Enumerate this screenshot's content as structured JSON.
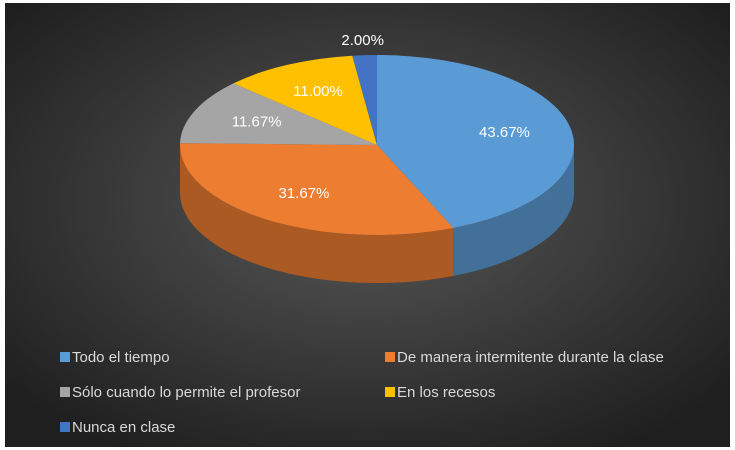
{
  "chart_data": {
    "type": "pie",
    "categories": [
      "Todo el tiempo",
      "De manera intermitente durante la clase",
      "Sólo cuando lo permite el profesor",
      "En los recesos",
      "Nunca en clase"
    ],
    "values": [
      43.67,
      31.67,
      11.67,
      11.0,
      2.0
    ],
    "value_labels": [
      "43.67%",
      "31.67%",
      "11.67%",
      "11.00%",
      "2.00%"
    ],
    "colors": [
      "#5b9bd5",
      "#ed7d31",
      "#a5a5a5",
      "#ffc000",
      "#4472c4"
    ],
    "legend": "bottom"
  }
}
